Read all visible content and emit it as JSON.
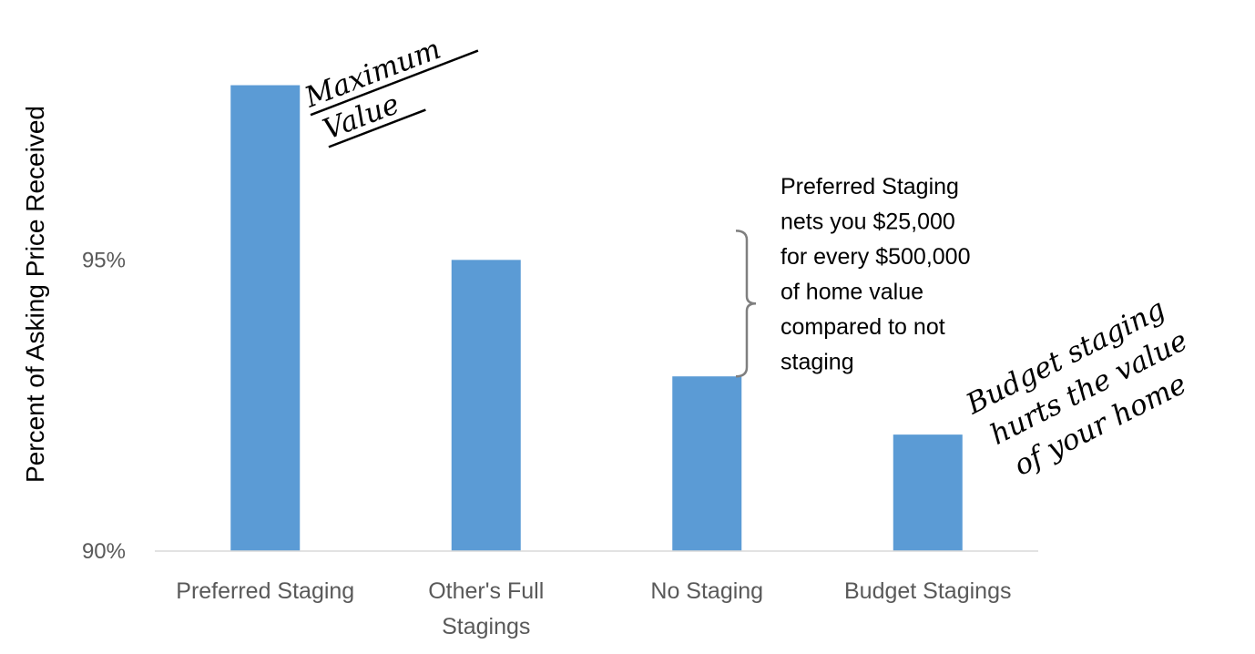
{
  "chart_data": {
    "type": "bar",
    "categories": [
      "Preferred Staging",
      "Other's Full Stagings",
      "No Staging",
      "Budget Stagings"
    ],
    "category_lines": [
      [
        "Preferred Staging"
      ],
      [
        "Other's Full",
        "Stagings"
      ],
      [
        "No Staging"
      ],
      [
        "Budget Stagings"
      ]
    ],
    "values": [
      98.0,
      95.0,
      93.0,
      92.0
    ],
    "ylabel": "Percent of Asking Price Received",
    "ylim": [
      90,
      98.9
    ],
    "yticks": [
      90,
      95
    ],
    "ytick_labels": [
      "90%",
      "95%"
    ],
    "grid": false,
    "bar_color": "#5b9bd5",
    "bracket_color": "#7f7f7f",
    "annotations": {
      "maximum_value": [
        "Maximum",
        "Value"
      ],
      "bracket_note": [
        "Preferred Staging",
        "nets you $25,000",
        "for every $500,000",
        "of home value",
        "compared to not",
        "staging"
      ],
      "budget_note": [
        "Budget staging",
        "hurts the value",
        "of your home"
      ]
    }
  }
}
